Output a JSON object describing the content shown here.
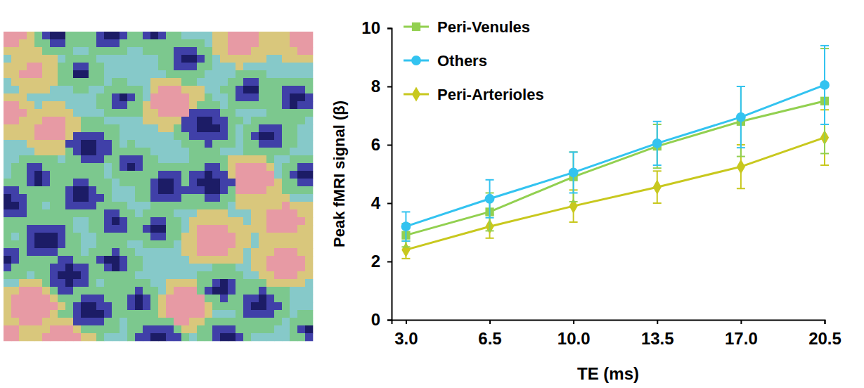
{
  "chart_data": {
    "type": "line",
    "x_label": "TE (ms)",
    "y_label": "Peak fMRI signal (β)",
    "x": [
      3.0,
      6.5,
      10.0,
      13.5,
      17.0,
      20.5
    ],
    "xlim": [
      2.4,
      20.5
    ],
    "xticks": [
      {
        "value": 3.0,
        "label": "3.0"
      },
      {
        "value": 6.5,
        "label": "6.5"
      },
      {
        "value": 10.0,
        "label": "10.0"
      },
      {
        "value": 13.5,
        "label": "13.5"
      },
      {
        "value": 17.0,
        "label": "17.0"
      },
      {
        "value": 20.5,
        "label": "20.5"
      }
    ],
    "ylim": [
      0,
      10
    ],
    "yticks": [
      0,
      2,
      4,
      6,
      8,
      10
    ],
    "legend": "upper left",
    "series": [
      {
        "name": "Peri-Venules",
        "color": "#92d050",
        "marker": "square",
        "values": [
          2.9,
          3.7,
          4.9,
          5.95,
          6.8,
          7.5
        ],
        "errors": [
          0.4,
          0.65,
          0.85,
          0.75,
          1.2,
          1.8
        ]
      },
      {
        "name": "Others",
        "color": "#33c3f0",
        "marker": "circle",
        "values": [
          3.2,
          4.15,
          5.05,
          6.05,
          6.95,
          8.05
        ],
        "errors": [
          0.5,
          0.65,
          0.7,
          0.75,
          1.05,
          1.35
        ]
      },
      {
        "name": "Peri-Arterioles",
        "color": "#c8c81e",
        "marker": "diamond",
        "values": [
          2.4,
          3.2,
          3.9,
          4.55,
          5.25,
          6.25
        ],
        "errors": [
          0.3,
          0.4,
          0.55,
          0.55,
          0.75,
          0.95
        ]
      }
    ]
  }
}
